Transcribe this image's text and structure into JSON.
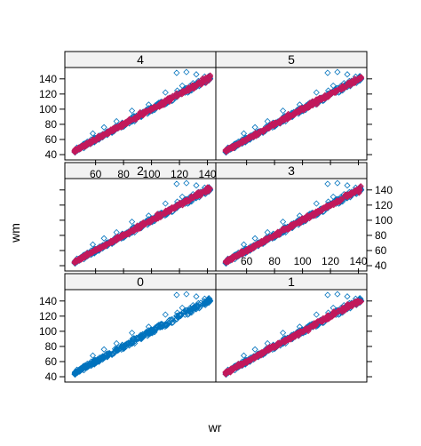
{
  "chart_data": {
    "type": "scatter",
    "xlabel": "wr",
    "ylabel": "wm",
    "xlim": [
      38,
      146
    ],
    "ylim": [
      33,
      155
    ],
    "x_ticks": [
      60,
      80,
      100,
      120,
      140
    ],
    "y_ticks": [
      40,
      60,
      80,
      100,
      120,
      140
    ],
    "grid": false,
    "layout": "2 columns x 3 rows",
    "colors": {
      "base": "#0072BD",
      "overlay": "#C2185B",
      "strip": "#F2F2F2",
      "frame": "#000000"
    },
    "marker": "open-diamond",
    "panels": [
      {
        "label": "0",
        "series": [
          "base"
        ]
      },
      {
        "label": "1",
        "series": [
          "base",
          "overlay"
        ]
      },
      {
        "label": "2",
        "series": [
          "base",
          "overlay"
        ]
      },
      {
        "label": "3",
        "series": [
          "base",
          "overlay"
        ]
      },
      {
        "label": "4",
        "series": [
          "base",
          "overlay"
        ]
      },
      {
        "label": "5",
        "series": [
          "base",
          "overlay"
        ]
      }
    ],
    "trend": {
      "x_start": 45,
      "y_start": 45,
      "x_end": 142,
      "y_end": 142
    },
    "base_outliers": [
      [
        118,
        148
      ],
      [
        125,
        149
      ],
      [
        132,
        146
      ],
      [
        138,
        143
      ],
      [
        140,
        140
      ],
      [
        122,
        131
      ],
      [
        110,
        122
      ],
      [
        98,
        106
      ],
      [
        86,
        98
      ],
      [
        75,
        84
      ],
      [
        66,
        76
      ],
      [
        58,
        68
      ]
    ]
  }
}
